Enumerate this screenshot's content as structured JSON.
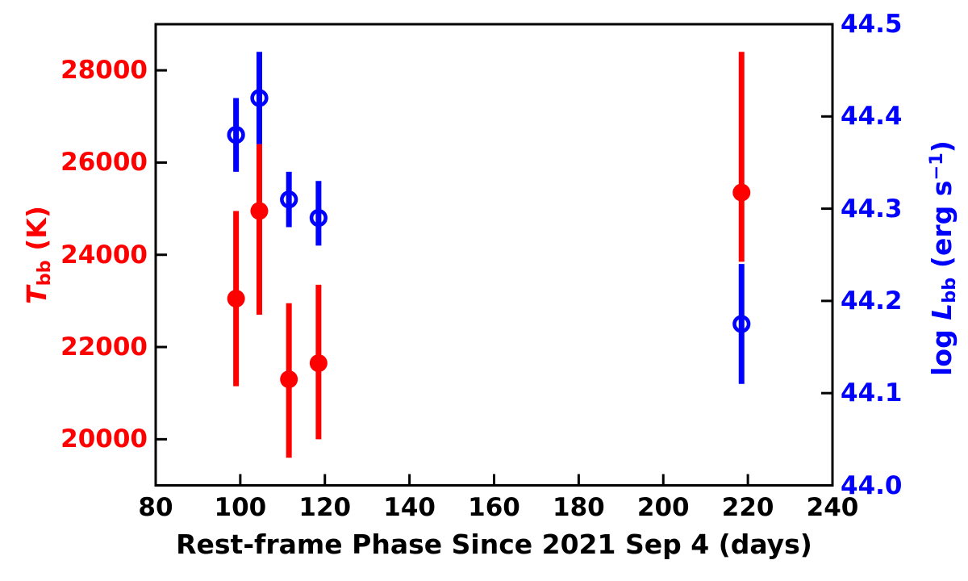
{
  "figure": {
    "xlabel": "Rest-frame Phase Since 2021 Sep 4 (days)",
    "left_label": {
      "symbol": "T",
      "sub": "bb",
      "rest": " (K)"
    },
    "right_label": {
      "prefix": "log ",
      "symbol": "L",
      "sub": "bb",
      "mid": " (erg s",
      "sup": "−1",
      "suffix": ")"
    }
  },
  "chart_data": {
    "type": "scatter",
    "title": "",
    "xlabel": "Rest-frame Phase Since 2021 Sep 4 (days)",
    "xlim": [
      80,
      240
    ],
    "x_ticks": [
      80,
      100,
      120,
      140,
      160,
      180,
      200,
      220,
      240
    ],
    "x_tick_labels": [
      "80",
      "100",
      "120",
      "140",
      "160",
      "180",
      "200",
      "220",
      "240"
    ],
    "grid": false,
    "legend": "none",
    "frame_color": "#000000",
    "left_axis": {
      "label": "T_bb (K)",
      "color": "#ff0000",
      "lim": [
        19000,
        29000
      ],
      "ticks": [
        20000,
        22000,
        24000,
        26000,
        28000
      ],
      "tick_labels": [
        "20000",
        "22000",
        "24000",
        "26000",
        "28000"
      ]
    },
    "right_axis": {
      "label": "log L_bb (erg s^-1)",
      "color": "#0000ff",
      "lim": [
        44.0,
        44.5
      ],
      "ticks": [
        44.0,
        44.1,
        44.2,
        44.3,
        44.4,
        44.5
      ],
      "tick_labels": [
        "44.0",
        "44.1",
        "44.2",
        "44.3",
        "44.4",
        "44.5"
      ]
    },
    "series": [
      {
        "name": "T_bb",
        "axis": "left",
        "marker": "filled-circle",
        "color": "#ff0000",
        "x": [
          99,
          104.5,
          111.5,
          118.5,
          218.5
        ],
        "y": [
          23050,
          24950,
          21300,
          21650,
          25350
        ],
        "y_lo": [
          21150,
          22700,
          19600,
          20000,
          23850
        ],
        "y_hi": [
          24950,
          26400,
          22950,
          23350,
          28400
        ]
      },
      {
        "name": "log L_bb",
        "axis": "right",
        "marker": "open-circle",
        "color": "#0000ff",
        "x": [
          99,
          104.5,
          111.5,
          118.5,
          218.5
        ],
        "y": [
          44.38,
          44.42,
          44.31,
          44.29,
          44.175
        ],
        "y_lo": [
          44.34,
          44.37,
          44.28,
          44.26,
          44.11
        ],
        "y_hi": [
          44.42,
          44.47,
          44.34,
          44.33,
          44.24
        ]
      }
    ]
  }
}
